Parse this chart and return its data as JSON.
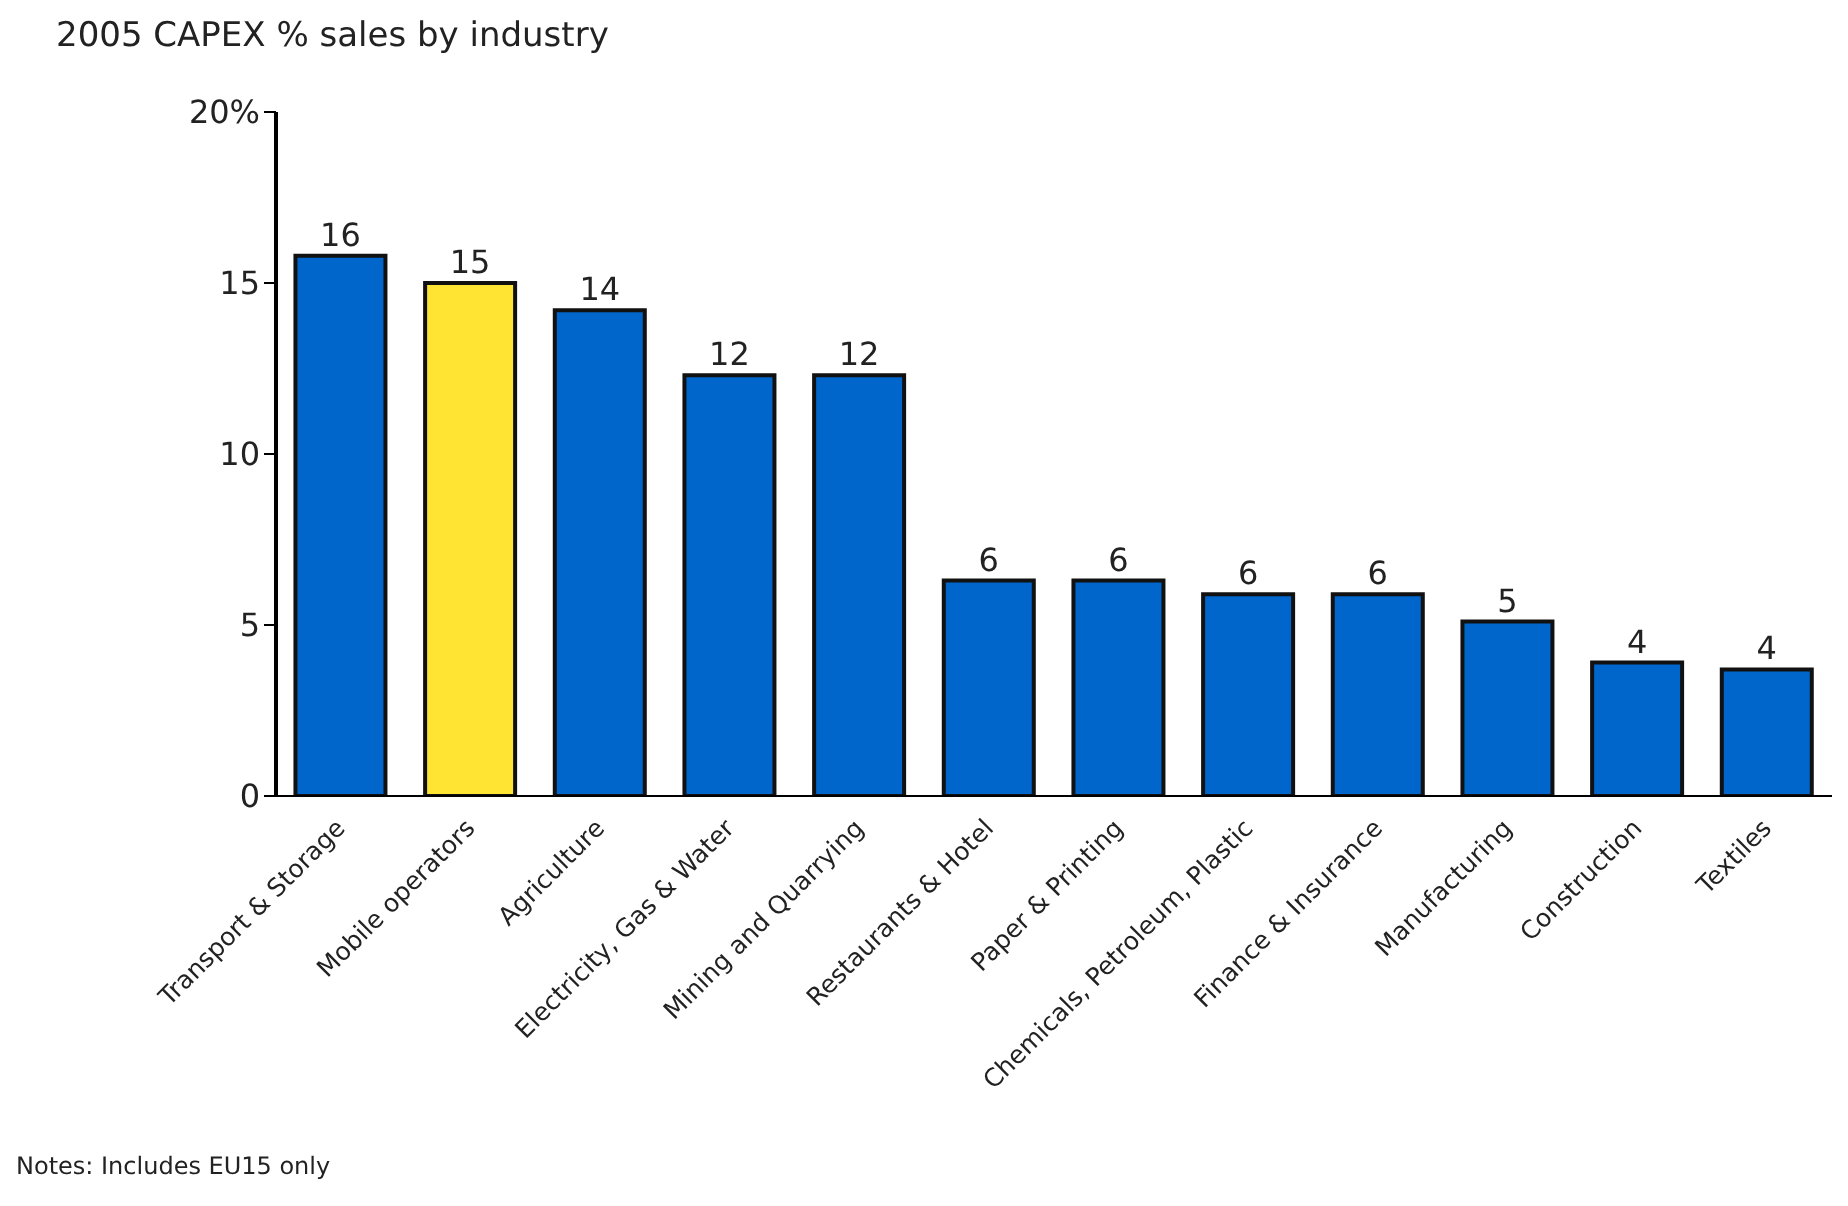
{
  "chart_data": {
    "type": "bar",
    "title": "2005 CAPEX % sales by industry",
    "categories": [
      "Transport & Storage",
      "Mobile operators",
      "Agriculture",
      "Electricity, Gas & Water",
      "Mining and Quarrying",
      "Restaurants & Hotel",
      "Paper & Printing",
      "Chemicals, Petroleum, Plastic",
      "Finance & Insurance",
      "Manufacturing",
      "Construction",
      "Textiles"
    ],
    "values": [
      15.8,
      15.0,
      14.2,
      12.3,
      12.3,
      6.3,
      6.3,
      5.9,
      5.9,
      5.1,
      3.9,
      3.7
    ],
    "colors": [
      "#0066cc",
      "#ffe433",
      "#0066cc",
      "#0066cc",
      "#0066cc",
      "#0066cc",
      "#0066cc",
      "#0066cc",
      "#0066cc",
      "#0066cc",
      "#0066cc",
      "#0066cc"
    ],
    "value_labels": [
      "16",
      "15",
      "14",
      "12",
      "12",
      "6",
      "6",
      "6",
      "6",
      "5",
      "4",
      "4"
    ],
    "ylim": [
      0,
      20
    ],
    "yticks": [
      0,
      5,
      10,
      15,
      {
        "value": 20,
        "label": "20%"
      }
    ],
    "grid": false,
    "annotations": [
      "Notes: Includes EU15 only"
    ]
  }
}
